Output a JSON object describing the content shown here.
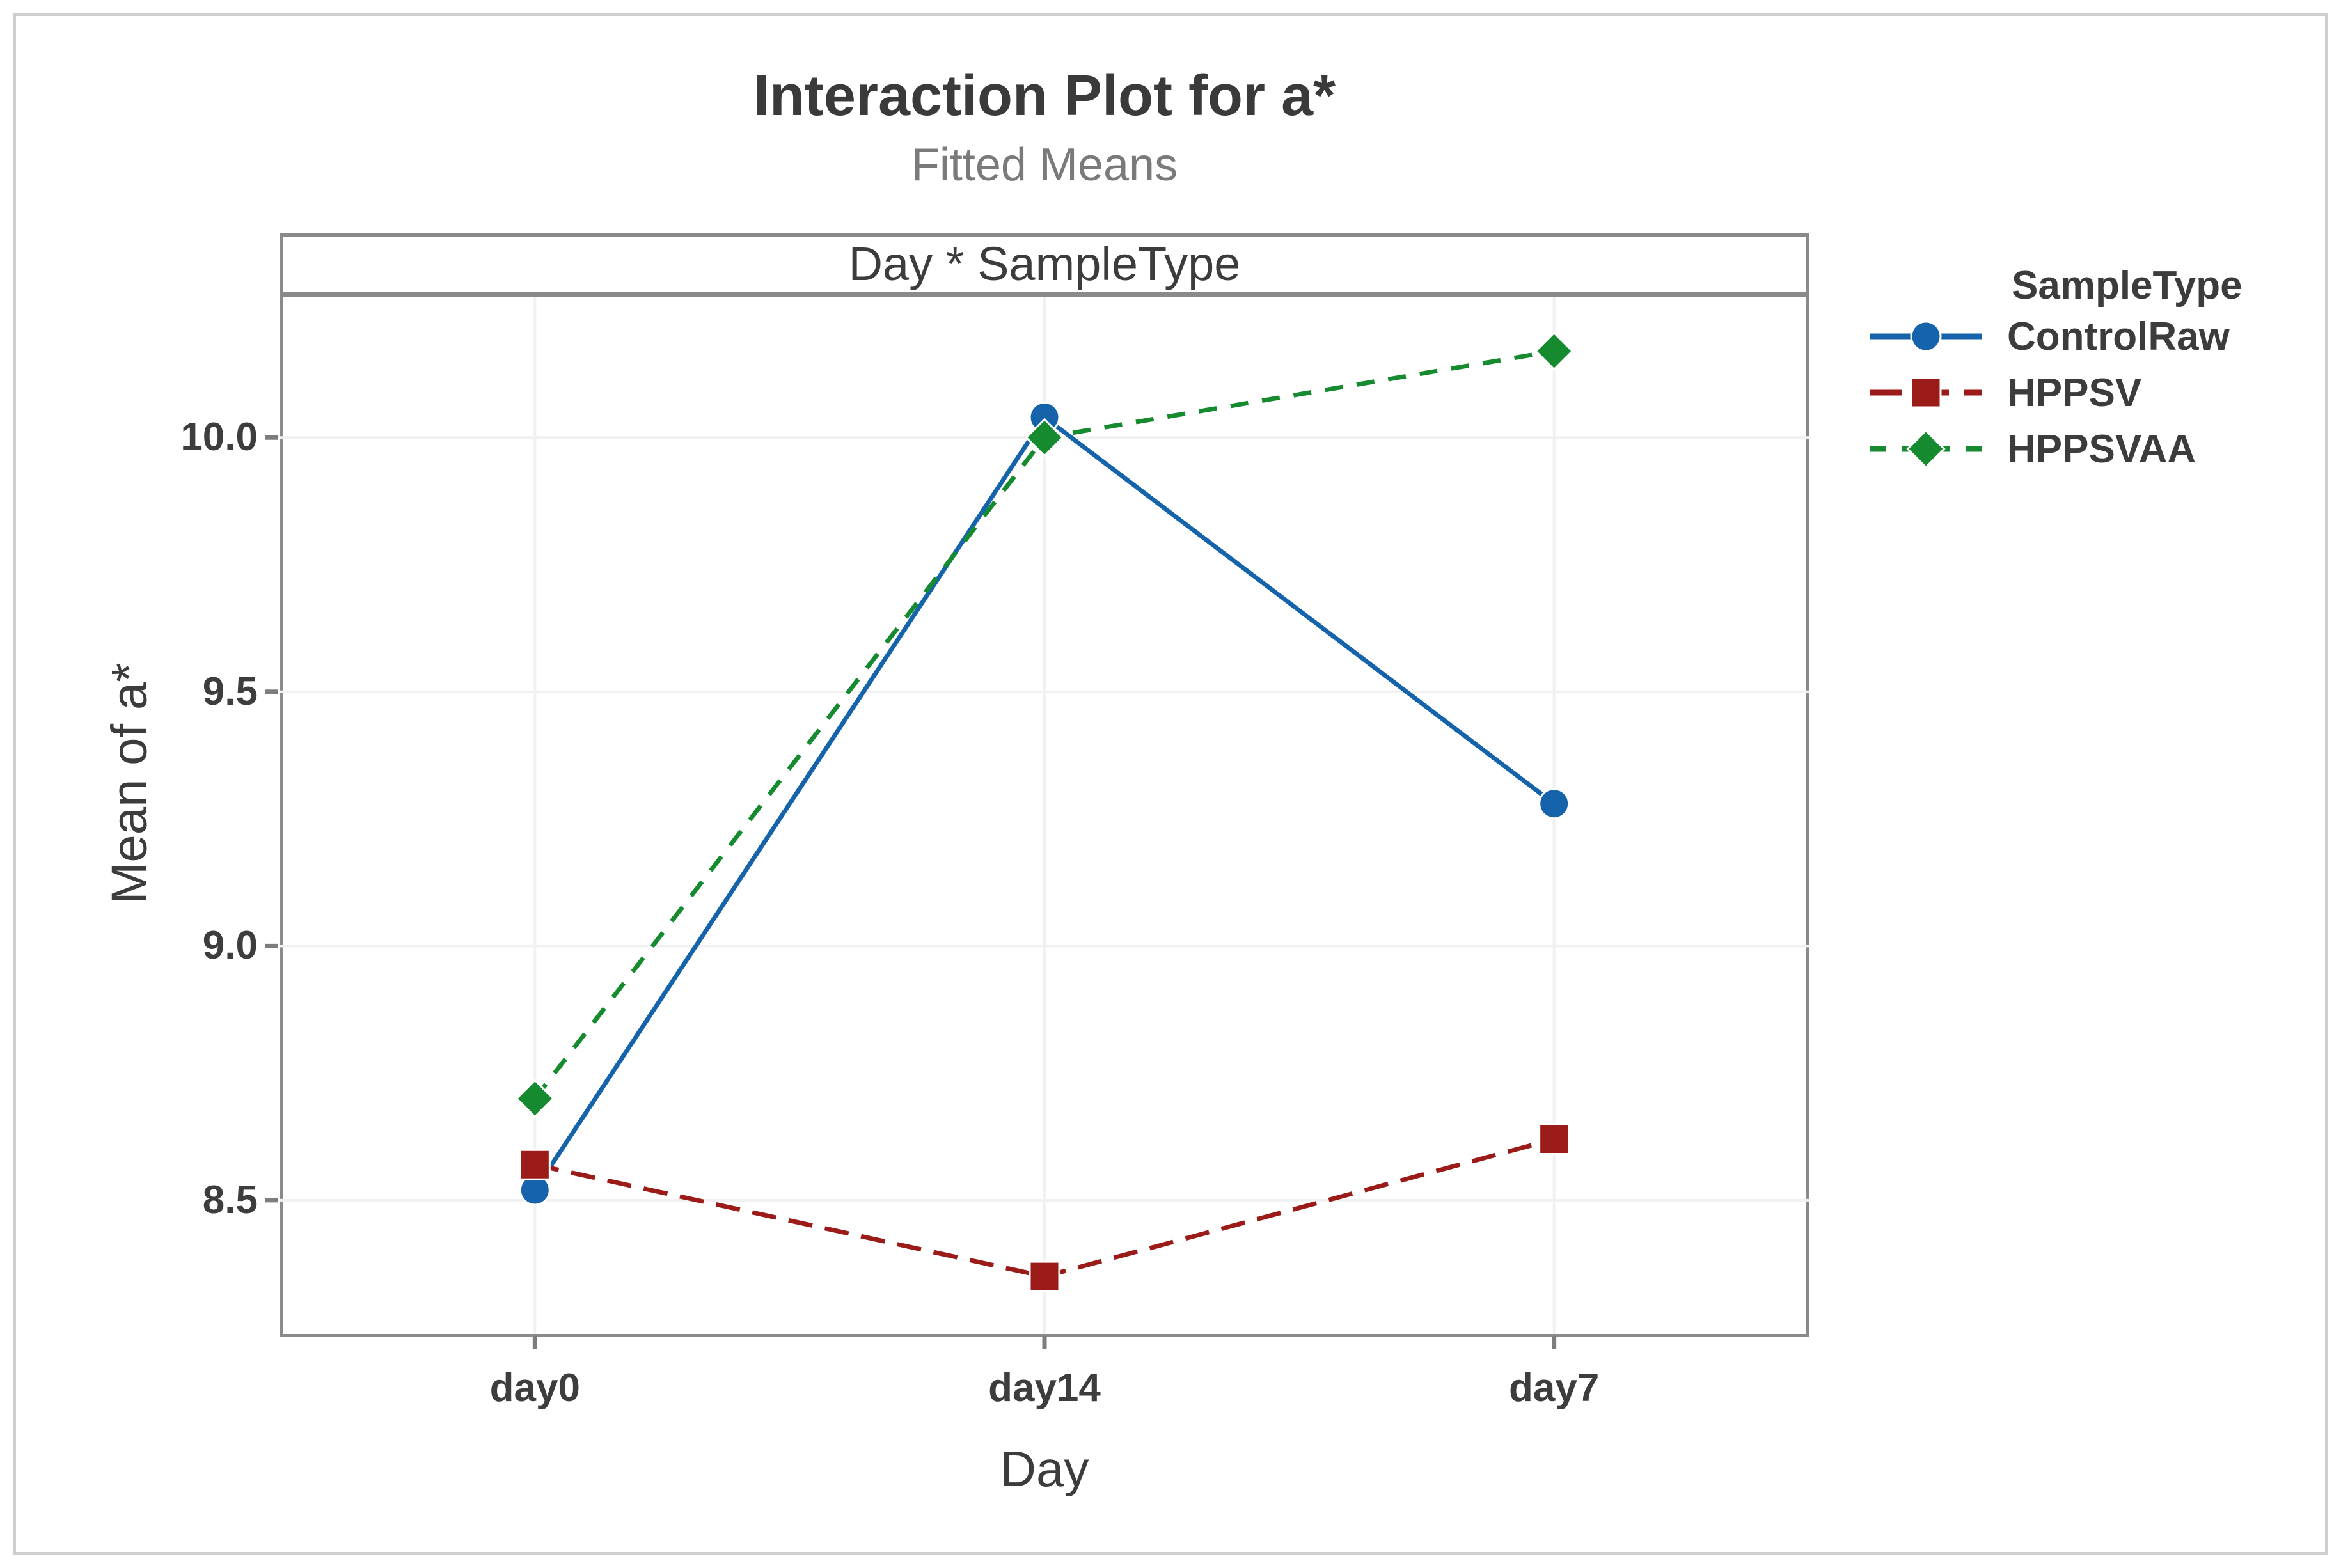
{
  "chart_data": {
    "type": "line",
    "title": "Interaction Plot for a*",
    "subtitle": "Fitted Means",
    "panel_label": "Day * SampleType",
    "xlabel": "Day",
    "ylabel": "Mean of a*",
    "categories": [
      "day0",
      "day14",
      "day7"
    ],
    "series": [
      {
        "name": "ControlRaw",
        "values": [
          8.52,
          10.04,
          9.28
        ],
        "color": "#1564ab",
        "marker": "circle",
        "dash": "solid"
      },
      {
        "name": "HPPSV",
        "values": [
          8.57,
          8.35,
          8.62
        ],
        "color": "#9b1b18",
        "marker": "square",
        "dash": "long-dash"
      },
      {
        "name": "HPPSVAA",
        "values": [
          8.7,
          10.0,
          10.17
        ],
        "color": "#168a2f",
        "marker": "diamond",
        "dash": "dash"
      }
    ],
    "yticks": [
      8.5,
      9.0,
      9.5,
      10.0
    ],
    "ytick_labels": [
      "8.5",
      "9.0",
      "9.5",
      "10.0"
    ],
    "ylim": [
      8.237,
      10.277
    ],
    "legend_title": "SampleType",
    "legend_position": "right",
    "grid": true,
    "colors": {
      "grid": "#f1f1f1",
      "axis": "#8a8a8a",
      "tick": "#7d7d7d",
      "title_text": "#3a3a3a",
      "subtitle_text": "#7a7a7a",
      "figure_border": "#cfcfcf"
    }
  }
}
